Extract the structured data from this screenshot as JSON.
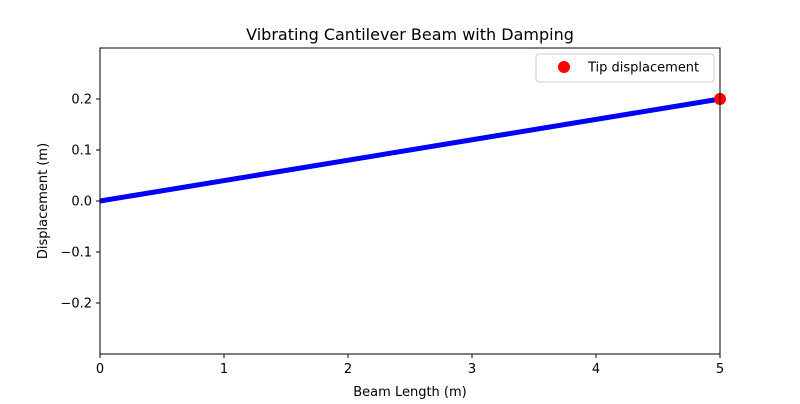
{
  "chart_data": {
    "type": "line",
    "title": "Vibrating Cantilever Beam with Damping",
    "xlabel": "Beam Length (m)",
    "ylabel": "Displacement (m)",
    "xlim": [
      0,
      5
    ],
    "ylim": [
      -0.3,
      0.3
    ],
    "xticks": [
      0,
      1,
      2,
      3,
      4,
      5
    ],
    "yticks": [
      -0.2,
      -0.1,
      0.0,
      0.1,
      0.2
    ],
    "xtick_labels": [
      "0",
      "1",
      "2",
      "3",
      "4",
      "5"
    ],
    "ytick_labels": [
      "−0.2",
      "−0.1",
      "0.0",
      "0.1",
      "0.2"
    ],
    "grid": false,
    "legend": {
      "placement": "top-right",
      "entries": [
        "Tip displacement"
      ]
    },
    "series": [
      {
        "type": "line",
        "x": [
          0,
          5
        ],
        "y": [
          0.0,
          0.2
        ]
      },
      {
        "name": "Tip displacement",
        "type": "scatter",
        "x": [
          5
        ],
        "y": [
          0.2
        ]
      }
    ],
    "colors": {
      "beam": "#0000ff",
      "tip": "#ff0000",
      "axes": "#000000",
      "legend_border": "#cccccc"
    }
  }
}
